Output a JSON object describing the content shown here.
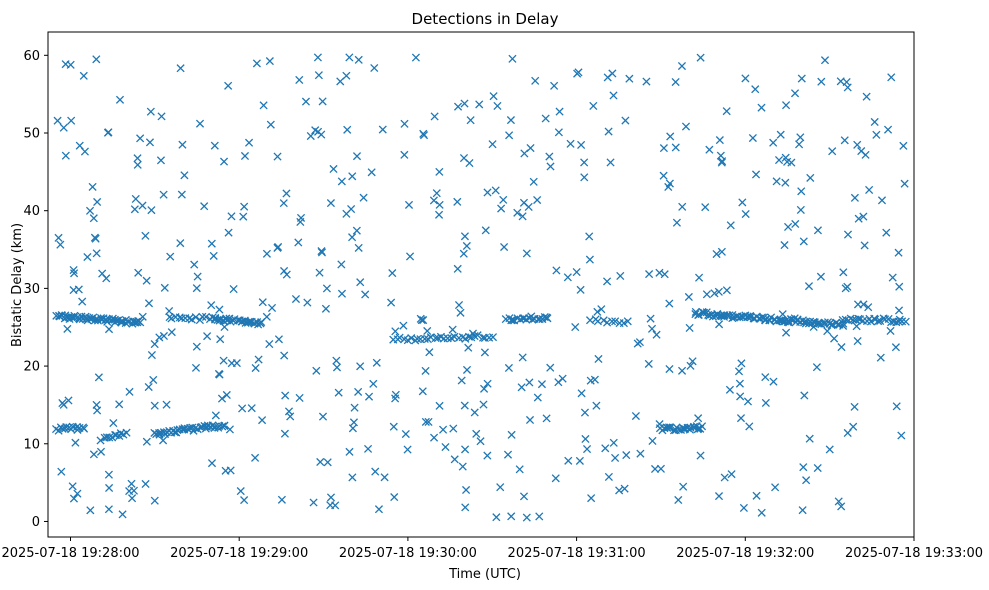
{
  "chart_data": {
    "type": "scatter",
    "title": "Detections in Delay",
    "xlabel": "Time (UTC)",
    "ylabel": "Bistatic Delay (km)",
    "marker": "x",
    "color": "#1f77b4",
    "grid": false,
    "legend": false,
    "xlim": [
      "2025-07-18 19:27:52",
      "2025-07-18 19:33:00"
    ],
    "ylim": [
      -2,
      63
    ],
    "xticks": [
      "2025-07-18 19:28:00",
      "2025-07-18 19:29:00",
      "2025-07-18 19:30:00",
      "2025-07-18 19:31:00",
      "2025-07-18 19:32:00",
      "2025-07-18 19:33:00"
    ],
    "yticks": [
      0,
      10,
      20,
      30,
      40,
      50,
      60
    ],
    "tracks": [
      {
        "x": [
          "2025-07-18 19:27:55",
          "2025-07-18 19:28:25"
        ],
        "y": [
          26.4,
          25.6
        ],
        "points": 55
      },
      {
        "x": [
          "2025-07-18 19:28:35",
          "2025-07-18 19:28:48"
        ],
        "y": [
          26.4,
          26.1
        ],
        "points": 12
      },
      {
        "x": [
          "2025-07-18 19:28:50",
          "2025-07-18 19:29:08"
        ],
        "y": [
          26.1,
          25.5
        ],
        "points": 32
      },
      {
        "x": [
          "2025-07-18 19:27:55",
          "2025-07-18 19:28:05"
        ],
        "y": [
          11.9,
          12.0
        ],
        "points": 14
      },
      {
        "x": [
          "2025-07-18 19:28:12",
          "2025-07-18 19:28:20"
        ],
        "y": [
          11.0,
          11.2
        ],
        "points": 10
      },
      {
        "x": [
          "2025-07-18 19:28:30",
          "2025-07-18 19:28:55"
        ],
        "y": [
          11.3,
          12.4
        ],
        "points": 40
      },
      {
        "x": [
          "2025-07-18 19:29:55",
          "2025-07-18 19:30:30"
        ],
        "y": [
          23.4,
          23.8
        ],
        "points": 30
      },
      {
        "x": [
          "2025-07-18 19:30:35",
          "2025-07-18 19:30:50"
        ],
        "y": [
          26.0,
          26.3
        ],
        "points": 20
      },
      {
        "x": [
          "2025-07-18 19:31:05",
          "2025-07-18 19:31:18"
        ],
        "y": [
          25.9,
          25.7
        ],
        "points": 10
      },
      {
        "x": [
          "2025-07-18 19:31:30",
          "2025-07-18 19:31:45"
        ],
        "y": [
          11.9,
          12.1
        ],
        "points": 25
      },
      {
        "x": [
          "2025-07-18 19:31:42",
          "2025-07-18 19:32:35"
        ],
        "y": [
          26.8,
          25.3
        ],
        "points": 90
      },
      {
        "x": [
          "2025-07-18 19:32:35",
          "2025-07-18 19:32:57"
        ],
        "y": [
          26.1,
          25.8
        ],
        "points": 26
      }
    ],
    "clutter": {
      "x": [
        "2025-07-18 19:27:55",
        "2025-07-18 19:32:57"
      ],
      "y": [
        0.5,
        59.8
      ],
      "points": 560
    }
  }
}
